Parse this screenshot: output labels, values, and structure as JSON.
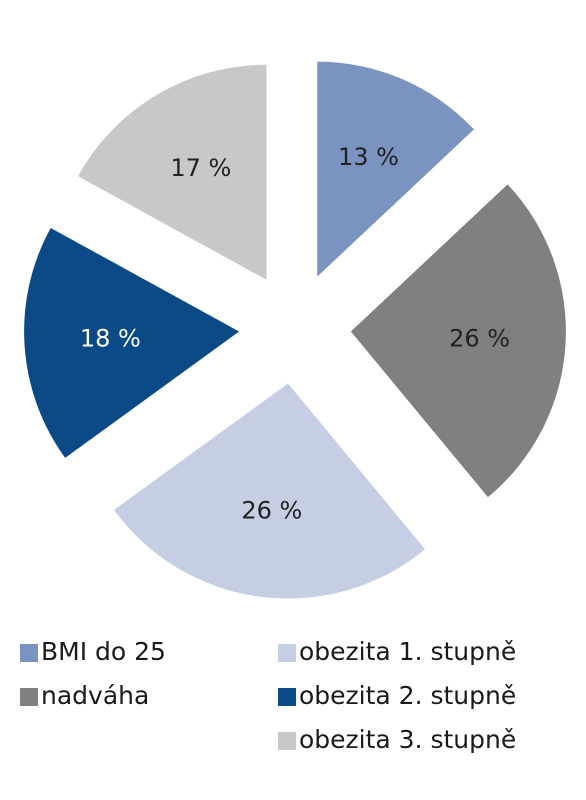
{
  "chart_data": {
    "type": "pie",
    "categories": [
      "BMI do 25",
      "nadváha",
      "obezita 1. stupně",
      "obezita 2. stupně",
      "obezita 3. stupně"
    ],
    "values": [
      13,
      26,
      26,
      18,
      17
    ],
    "value_labels": [
      "13 %",
      "26 %",
      "26 %",
      "18 %",
      "17 %"
    ],
    "colors": [
      "#7b93c0",
      "#808080",
      "#c6cee4",
      "#0b4a86",
      "#c8c8c8"
    ]
  }
}
